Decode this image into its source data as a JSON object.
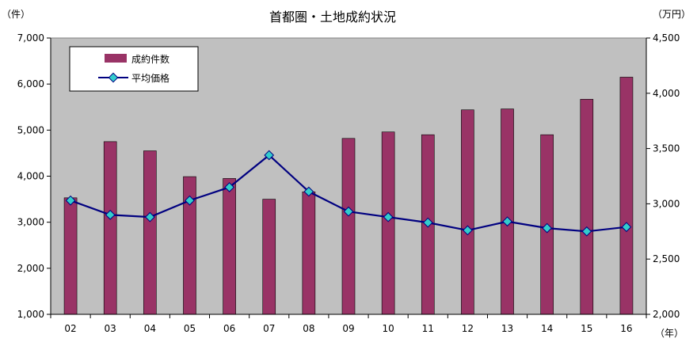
{
  "chart_data": {
    "type": "bar+line",
    "title": "首都圏・土地成約状況",
    "left_unit": "（件）",
    "right_unit": "（万円）",
    "x_unit": "（年）",
    "categories": [
      "02",
      "03",
      "04",
      "05",
      "06",
      "07",
      "08",
      "09",
      "10",
      "11",
      "12",
      "13",
      "14",
      "15",
      "16"
    ],
    "left_axis": {
      "range": [
        1000,
        7000
      ],
      "ticks": [
        "1,000",
        "2,000",
        "3,000",
        "4,000",
        "5,000",
        "6,000",
        "7,000"
      ]
    },
    "right_axis": {
      "range": [
        2000,
        4500
      ],
      "ticks": [
        "2,000",
        "2,500",
        "3,000",
        "3,500",
        "4,000",
        "4,500"
      ]
    },
    "series": [
      {
        "name": "成約件数",
        "kind": "bar",
        "axis": "left",
        "color": "#993366",
        "values": [
          3530,
          4750,
          4550,
          3990,
          3950,
          3500,
          3660,
          4820,
          4960,
          4900,
          5440,
          5460,
          4900,
          5670,
          6150
        ]
      },
      {
        "name": "平均価格",
        "kind": "line",
        "axis": "right",
        "color": "#000080",
        "marker_color": "#33cccc",
        "values": [
          3030,
          2900,
          2880,
          3030,
          3150,
          3440,
          3110,
          2930,
          2880,
          2830,
          2760,
          2840,
          2780,
          2750,
          2790
        ]
      }
    ],
    "legend_position": "top-left",
    "grid": false
  }
}
